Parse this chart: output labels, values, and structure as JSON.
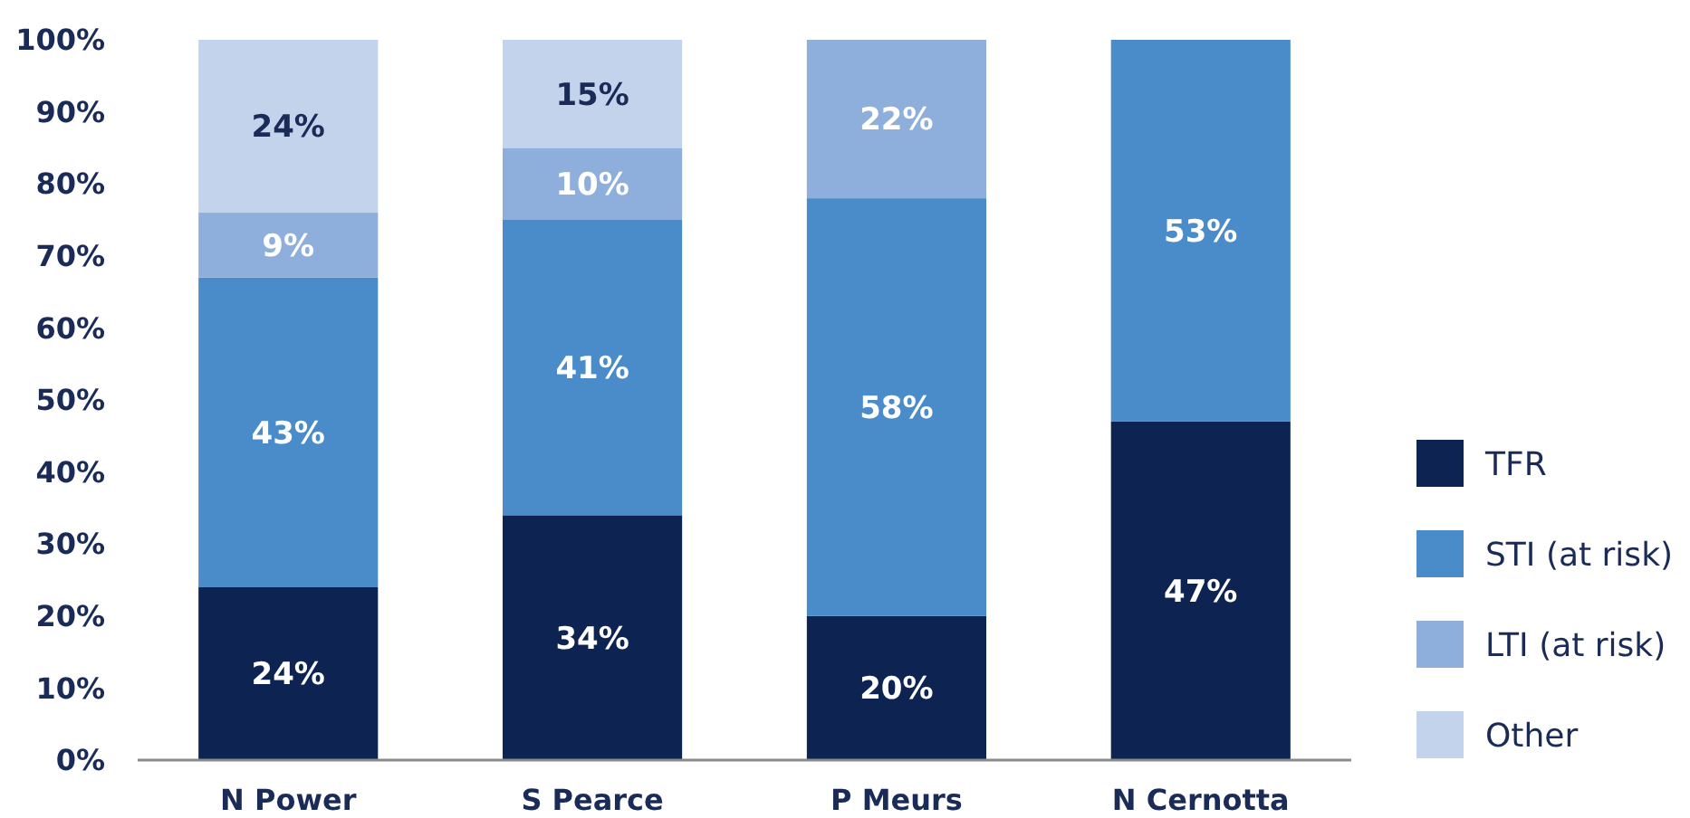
{
  "chart_data": {
    "type": "bar",
    "stacked": true,
    "categories": [
      "N Power",
      "S Pearce",
      "P Meurs",
      "N Cernotta"
    ],
    "series": [
      {
        "name": "TFR",
        "color": "#0d2352",
        "values": [
          24,
          34,
          20,
          47
        ],
        "value_labels": [
          "24%",
          "34%",
          "20%",
          "47%"
        ]
      },
      {
        "name": "STI (at risk)",
        "color": "#4a8bca",
        "values": [
          43,
          41,
          58,
          53
        ],
        "value_labels": [
          "43%",
          "41%",
          "58%",
          "53%"
        ]
      },
      {
        "name": "LTI (at risk)",
        "color": "#8eafdc",
        "values": [
          9,
          10,
          22,
          null
        ],
        "value_labels": [
          "9%",
          "10%",
          "22%",
          null
        ]
      },
      {
        "name": "Other",
        "color": "#c4d3ec",
        "values": [
          24,
          15,
          null,
          null
        ],
        "value_labels": [
          "24%",
          "15%",
          null,
          null
        ]
      }
    ],
    "ylim": [
      0,
      100
    ],
    "yticks": [
      {
        "value": 0,
        "label": "0%"
      },
      {
        "value": 10,
        "label": "10%"
      },
      {
        "value": 20,
        "label": "20%"
      },
      {
        "value": 30,
        "label": "30%"
      },
      {
        "value": 40,
        "label": "40%"
      },
      {
        "value": 50,
        "label": "50%"
      },
      {
        "value": 60,
        "label": "60%"
      },
      {
        "value": 70,
        "label": "70%"
      },
      {
        "value": 80,
        "label": "80%"
      },
      {
        "value": 90,
        "label": "90%"
      },
      {
        "value": 100,
        "label": "100%"
      }
    ],
    "legend": "right",
    "grid": false
  }
}
